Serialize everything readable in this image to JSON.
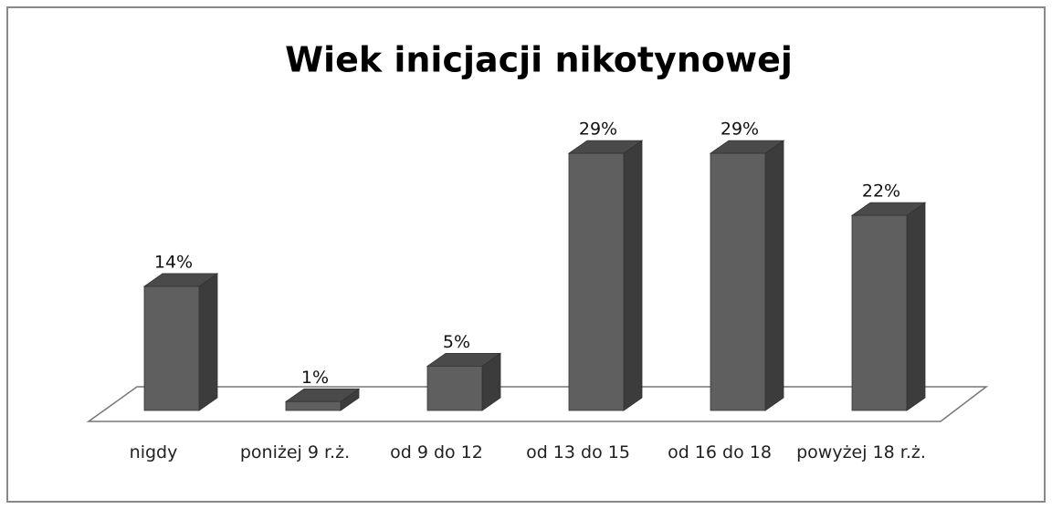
{
  "chart_data": {
    "type": "bar3d",
    "title": "Wiek inicjacji nikotynowej",
    "categories": [
      "nigdy",
      "poniżej 9 r.ż.",
      "od 9 do 12",
      "od 13 do 15",
      "od 16 do 18",
      "powyżej 18 r.ż."
    ],
    "values": [
      14,
      1,
      5,
      29,
      29,
      22
    ],
    "value_labels": [
      "14%",
      "1%",
      "5%",
      "29%",
      "29%",
      "22%"
    ],
    "color": "#5f5f5f"
  }
}
